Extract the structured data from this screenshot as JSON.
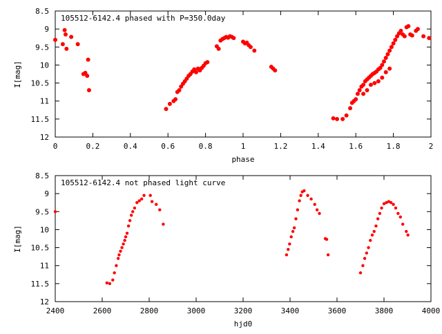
{
  "chart_data": [
    {
      "type": "scatter",
      "title": "105512-6142.4 phased with P=350.0day",
      "xlabel": "phase",
      "ylabel": "I[mag]",
      "xlim": [
        0,
        2
      ],
      "ylim": [
        12,
        8.5
      ],
      "y_inverted": true,
      "grid": false,
      "marker_color": "#ff0000",
      "x_ticks": [
        "0",
        "0.2",
        "0.4",
        "0.6",
        "0.8",
        "1",
        "1.2",
        "1.4",
        "1.6",
        "1.8",
        "2"
      ],
      "y_ticks": [
        "8.5",
        "9",
        "9.5",
        "10",
        "10.5",
        "11",
        "11.5",
        "12"
      ],
      "series": [
        {
          "points": [
            [
              0.0,
              9.3
            ],
            [
              0.04,
              9.42
            ],
            [
              0.05,
              9.03
            ],
            [
              0.055,
              9.15
            ],
            [
              0.06,
              9.55
            ],
            [
              0.085,
              9.22
            ],
            [
              0.12,
              9.42
            ],
            [
              0.15,
              10.25
            ],
            [
              0.16,
              10.22
            ],
            [
              0.17,
              10.3
            ],
            [
              0.175,
              9.85
            ],
            [
              0.18,
              10.7
            ],
            [
              0.59,
              11.22
            ],
            [
              0.61,
              11.08
            ],
            [
              0.63,
              11.0
            ],
            [
              0.64,
              10.95
            ],
            [
              0.65,
              10.75
            ],
            [
              0.66,
              10.7
            ],
            [
              0.67,
              10.6
            ],
            [
              0.68,
              10.52
            ],
            [
              0.69,
              10.45
            ],
            [
              0.7,
              10.38
            ],
            [
              0.71,
              10.3
            ],
            [
              0.72,
              10.25
            ],
            [
              0.73,
              10.18
            ],
            [
              0.74,
              10.12
            ],
            [
              0.75,
              10.2
            ],
            [
              0.76,
              10.1
            ],
            [
              0.77,
              10.15
            ],
            [
              0.78,
              10.08
            ],
            [
              0.79,
              10.02
            ],
            [
              0.8,
              9.95
            ],
            [
              0.81,
              9.92
            ],
            [
              0.86,
              9.48
            ],
            [
              0.87,
              9.55
            ],
            [
              0.88,
              9.32
            ],
            [
              0.89,
              9.28
            ],
            [
              0.9,
              9.25
            ],
            [
              0.91,
              9.22
            ],
            [
              0.92,
              9.24
            ],
            [
              0.93,
              9.2
            ],
            [
              0.94,
              9.22
            ],
            [
              0.95,
              9.25
            ],
            [
              1.0,
              9.35
            ],
            [
              1.01,
              9.4
            ],
            [
              1.02,
              9.38
            ],
            [
              1.03,
              9.45
            ],
            [
              1.04,
              9.5
            ],
            [
              1.06,
              9.6
            ],
            [
              1.15,
              10.05
            ],
            [
              1.16,
              10.1
            ],
            [
              1.17,
              10.15
            ],
            [
              1.48,
              11.48
            ],
            [
              1.5,
              11.5
            ],
            [
              1.53,
              11.5
            ],
            [
              1.55,
              11.4
            ],
            [
              1.57,
              11.2
            ],
            [
              1.58,
              11.05
            ],
            [
              1.59,
              11.0
            ],
            [
              1.6,
              10.95
            ],
            [
              1.61,
              10.8
            ],
            [
              1.62,
              10.7
            ],
            [
              1.63,
              10.6
            ],
            [
              1.64,
              10.55
            ],
            [
              1.65,
              10.45
            ],
            [
              1.66,
              10.4
            ],
            [
              1.67,
              10.35
            ],
            [
              1.68,
              10.3
            ],
            [
              1.69,
              10.25
            ],
            [
              1.7,
              10.22
            ],
            [
              1.71,
              10.18
            ],
            [
              1.72,
              10.12
            ],
            [
              1.73,
              10.08
            ],
            [
              1.74,
              10.0
            ],
            [
              1.75,
              9.9
            ],
            [
              1.76,
              9.8
            ],
            [
              1.77,
              9.7
            ],
            [
              1.78,
              9.6
            ],
            [
              1.79,
              9.5
            ],
            [
              1.8,
              9.4
            ],
            [
              1.81,
              9.3
            ],
            [
              1.82,
              9.2
            ],
            [
              1.83,
              9.12
            ],
            [
              1.84,
              9.05
            ],
            [
              1.85,
              9.15
            ],
            [
              1.86,
              9.2
            ],
            [
              1.87,
              8.95
            ],
            [
              1.88,
              8.92
            ],
            [
              1.89,
              9.15
            ],
            [
              1.9,
              9.18
            ],
            [
              1.92,
              9.05
            ],
            [
              1.93,
              9.0
            ],
            [
              1.96,
              9.2
            ],
            [
              1.99,
              9.25
            ],
            [
              1.68,
              10.55
            ],
            [
              1.7,
              10.5
            ],
            [
              1.72,
              10.45
            ],
            [
              1.74,
              10.35
            ],
            [
              1.76,
              10.2
            ],
            [
              1.78,
              10.1
            ],
            [
              1.66,
              10.7
            ],
            [
              1.64,
              10.8
            ]
          ]
        }
      ]
    },
    {
      "type": "scatter",
      "title": "105512-6142.4 not phased light curve",
      "xlabel": "hjd0",
      "ylabel": "I[mag]",
      "xlim": [
        2400,
        4000
      ],
      "ylim": [
        12,
        8.5
      ],
      "y_inverted": true,
      "grid": false,
      "marker_color": "#ff0000",
      "x_ticks": [
        "2400",
        "2600",
        "2800",
        "3000",
        "3200",
        "3400",
        "3600",
        "3800",
        "4000"
      ],
      "y_ticks": [
        "8.5",
        "9",
        "9.5",
        "10",
        "10.5",
        "11",
        "11.5",
        "12"
      ],
      "series": [
        {
          "points": [
            [
              2400,
              9.5
            ],
            [
              2620,
              11.48
            ],
            [
              2632,
              11.5
            ],
            [
              2645,
              11.4
            ],
            [
              2652,
              11.2
            ],
            [
              2660,
              11.0
            ],
            [
              2668,
              10.8
            ],
            [
              2672,
              10.7
            ],
            [
              2678,
              10.6
            ],
            [
              2684,
              10.5
            ],
            [
              2690,
              10.4
            ],
            [
              2696,
              10.3
            ],
            [
              2700,
              10.2
            ],
            [
              2706,
              10.1
            ],
            [
              2712,
              9.9
            ],
            [
              2718,
              9.75
            ],
            [
              2724,
              9.6
            ],
            [
              2730,
              9.5
            ],
            [
              2738,
              9.4
            ],
            [
              2748,
              9.25
            ],
            [
              2758,
              9.2
            ],
            [
              2768,
              9.15
            ],
            [
              2778,
              9.05
            ],
            [
              2805,
              9.05
            ],
            [
              2812,
              9.22
            ],
            [
              2830,
              9.3
            ],
            [
              2845,
              9.45
            ],
            [
              2860,
              9.85
            ],
            [
              3385,
              10.7
            ],
            [
              3392,
              10.55
            ],
            [
              3398,
              10.4
            ],
            [
              3405,
              10.2
            ],
            [
              3412,
              10.05
            ],
            [
              3418,
              9.95
            ],
            [
              3425,
              9.7
            ],
            [
              3432,
              9.45
            ],
            [
              3440,
              9.2
            ],
            [
              3446,
              9.05
            ],
            [
              3452,
              8.95
            ],
            [
              3460,
              8.92
            ],
            [
              3475,
              9.05
            ],
            [
              3490,
              9.15
            ],
            [
              3505,
              9.3
            ],
            [
              3515,
              9.45
            ],
            [
              3525,
              9.55
            ],
            [
              3550,
              10.25
            ],
            [
              3556,
              10.27
            ],
            [
              3562,
              10.7
            ],
            [
              3700,
              11.2
            ],
            [
              3710,
              11.0
            ],
            [
              3718,
              10.8
            ],
            [
              3726,
              10.65
            ],
            [
              3734,
              10.5
            ],
            [
              3742,
              10.3
            ],
            [
              3750,
              10.15
            ],
            [
              3758,
              10.05
            ],
            [
              3766,
              9.9
            ],
            [
              3774,
              9.7
            ],
            [
              3782,
              9.55
            ],
            [
              3790,
              9.4
            ],
            [
              3800,
              9.28
            ],
            [
              3810,
              9.25
            ],
            [
              3820,
              9.22
            ],
            [
              3830,
              9.25
            ],
            [
              3840,
              9.3
            ],
            [
              3850,
              9.4
            ],
            [
              3860,
              9.55
            ],
            [
              3870,
              9.65
            ],
            [
              3880,
              9.85
            ],
            [
              3895,
              10.05
            ],
            [
              3902,
              10.15
            ]
          ]
        }
      ]
    }
  ]
}
